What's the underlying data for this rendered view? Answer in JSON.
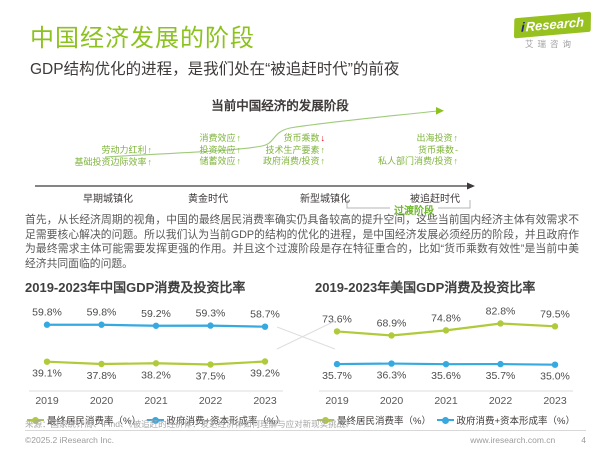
{
  "colors": {
    "brand_green": "#8CC21E",
    "chart_green": "#AFCA3B",
    "chart_blue": "#36A9E1",
    "red_arrow": "#E60012"
  },
  "header": {
    "title": "中国经济发展的阶段",
    "subtitle": "GDP结构优化的进程，是我们处在“被追赶时代”的前夜",
    "logo_i": "i",
    "logo_text": "Research",
    "logo_cn": "艾瑞咨询"
  },
  "diagram": {
    "title": "当前中国经济的发展阶段",
    "transition_label": "过渡阶段",
    "stages": {
      "s0": "早期城镇化",
      "s1": "黄金时代",
      "s2": "新型城镇化",
      "s3": "被追赶时代"
    },
    "columns": [
      {
        "items": [
          {
            "text": "劳动力红利",
            "arrow": "↑"
          },
          {
            "text": "基础投资边际效率",
            "arrow": "↑"
          }
        ]
      },
      {
        "items": [
          {
            "text": "消费效应",
            "arrow": "↑"
          },
          {
            "text": "投资效应",
            "arrow": "↑"
          },
          {
            "text": "储蓄效应",
            "arrow": "↑"
          }
        ]
      },
      {
        "items": [
          {
            "text": "货币乘数",
            "arrow": "↓"
          },
          {
            "text": "技术生产要素",
            "arrow": "↑"
          },
          {
            "text": "政府消费/投资",
            "arrow": "↑"
          }
        ]
      },
      {
        "items": [
          {
            "text": "出海投资",
            "arrow": "↑"
          },
          {
            "text": "货币乘数",
            "arrow": "-"
          },
          {
            "text": "私人部门消费/投资",
            "arrow": "↑"
          }
        ]
      }
    ]
  },
  "paragraph": "首先，从长经济周期的视角，中国的最终居民消费率确实仍具备较高的提升空间，这些当前国内经济主体有效需求不足需要核心解决的问题。所以我们认为当前GDP的结构的优化的进程，是中国经济发展必须经历的阶段，并且政府作为最终需求主体可能需要发挥更强的作用。并且这个过渡阶段是存在特征重合的，比如“货币乘数有效性”是当前中美经济共同面临的问题。",
  "chart_data": [
    {
      "type": "line",
      "title": "2019-2023年中国GDP消费及投资比率",
      "categories": [
        "2019",
        "2020",
        "2021",
        "2022",
        "2023"
      ],
      "series": [
        {
          "name": "政府消费+资本形成率（%）",
          "color": "#36A9E1",
          "values": [
            59.8,
            59.8,
            59.2,
            59.3,
            58.7
          ],
          "labels": [
            "59.8%",
            "59.8%",
            "59.2%",
            "59.3%",
            "58.7%"
          ],
          "label_position": "above"
        },
        {
          "name": "最终居民消费率（%）",
          "color": "#AFCA3B",
          "values": [
            39.1,
            37.8,
            38.2,
            37.5,
            39.2
          ],
          "labels": [
            "39.1%",
            "37.8%",
            "38.2%",
            "37.5%",
            "39.2%"
          ],
          "label_position": "below"
        }
      ],
      "legend": [
        {
          "label": "最终居民消费率（%）",
          "color": "#AFCA3B"
        },
        {
          "label": "政府消费+资本形成率（%）",
          "color": "#36A9E1"
        }
      ],
      "ylim": [
        35,
        63
      ],
      "grid": false,
      "legend_position": "bottom"
    },
    {
      "type": "line",
      "title": "2019-2023年美国GDP消费及投资比率",
      "categories": [
        "2019",
        "2020",
        "2021",
        "2022",
        "2023"
      ],
      "series": [
        {
          "name": "最终居民消费率（%）",
          "color": "#AFCA3B",
          "values": [
            73.6,
            68.9,
            74.8,
            82.8,
            79.5
          ],
          "labels": [
            "73.6%",
            "68.9%",
            "74.8%",
            "82.8%",
            "79.5%"
          ],
          "label_position": "above"
        },
        {
          "name": "政府消费+资本形成率（%）",
          "color": "#36A9E1",
          "values": [
            35.7,
            36.3,
            35.6,
            35.7,
            35.0
          ],
          "labels": [
            "35.7%",
            "36.3%",
            "35.6%",
            "35.7%",
            "35.0%"
          ],
          "label_position": "below"
        }
      ],
      "legend": [
        {
          "label": "最终居民消费率（%）",
          "color": "#AFCA3B"
        },
        {
          "label": "政府消费+资本形成率（%）",
          "color": "#36A9E1"
        }
      ],
      "ylim": [
        30,
        88
      ],
      "grid": false,
      "legend_position": "bottom"
    }
  ],
  "footer": {
    "source": "来源：国家统计局、iFind、《被追赶的经济体：发达经济体如何理解与应对新现实挑战》",
    "copyright": "©2025.2 iResearch Inc.",
    "site": "www.iresearch.com.cn",
    "page": "4"
  }
}
